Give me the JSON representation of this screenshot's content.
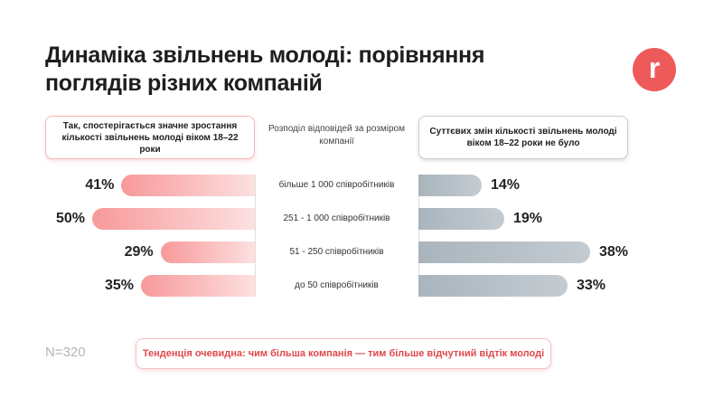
{
  "title": "Динаміка звільнень молоді: порівняння поглядів різних компаній",
  "logo": "r",
  "colors": {
    "accent": "#ee5a5a",
    "left_bar": "#f7999a",
    "right_bar": "#a9b4bc"
  },
  "chart_data": {
    "type": "bar",
    "orientation": "horizontal-diverging",
    "title": "Динаміка звільнень молоді: порівняння поглядів різних компаній",
    "categories_header": "Розподіл відповідей за розміром компанії",
    "categories": [
      "більше 1 000 співробітників",
      "251 - 1 000 співробітників",
      "51 - 250 співробітників",
      "до 50 співробітників"
    ],
    "series": [
      {
        "name": "Так, спостерігається значне зростання кількості звільнень молоді віком 18–22 роки",
        "values": [
          41,
          50,
          29,
          35
        ],
        "labels": [
          "41%",
          "50%",
          "29%",
          "35%"
        ]
      },
      {
        "name": "Суттєвих змін кількості звільнень молоді віком 18–22 роки не було",
        "values": [
          14,
          19,
          38,
          33
        ],
        "labels": [
          "14%",
          "19%",
          "38%",
          "33%"
        ]
      }
    ],
    "unit": "%"
  },
  "sample": "N=320",
  "note": "Тенденція очевидна: чим більша компанія — тим більше відчутний відтік молоді"
}
